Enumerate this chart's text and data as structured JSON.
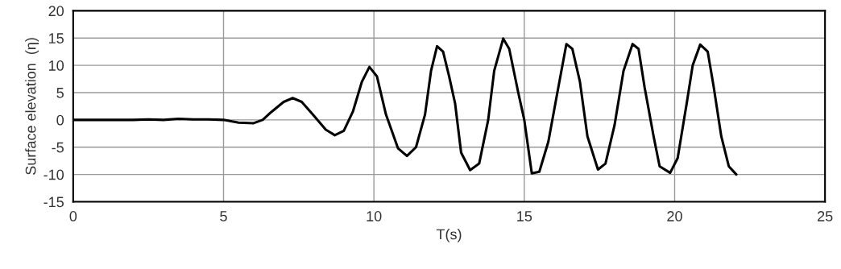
{
  "chart_data": {
    "type": "line",
    "xlabel": "T(s)",
    "ylabel": "Surface elevation  (η)",
    "series": [
      {
        "color": "#000000",
        "x": [
          0,
          0.5,
          1,
          1.5,
          2,
          2.5,
          3,
          3.5,
          4,
          4.5,
          5,
          5.5,
          6,
          6.3,
          6.6,
          7.0,
          7.3,
          7.6,
          8.0,
          8.4,
          8.7,
          9.0,
          9.3,
          9.6,
          9.85,
          10.1,
          10.4,
          10.8,
          11.1,
          11.4,
          11.7,
          11.9,
          12.1,
          12.3,
          12.5,
          12.7,
          12.9,
          13.2,
          13.5,
          13.8,
          14.0,
          14.3,
          14.5,
          14.8,
          15.0,
          15.25,
          15.5,
          15.8,
          16.1,
          16.4,
          16.6,
          16.85,
          17.1,
          17.45,
          17.7,
          18.0,
          18.3,
          18.6,
          18.8,
          19.0,
          19.3,
          19.5,
          19.85,
          20.1,
          20.4,
          20.6,
          20.85,
          21.1,
          21.3,
          21.55,
          21.8,
          22.05
        ],
        "values": [
          0,
          0,
          0,
          0,
          0,
          0.1,
          0,
          0.2,
          0.1,
          0.1,
          0,
          -0.5,
          -0.6,
          0,
          1.5,
          3.3,
          4,
          3.3,
          0.8,
          -1.8,
          -2.8,
          -2,
          1.5,
          7,
          9.7,
          8,
          1,
          -5.2,
          -6.6,
          -5,
          1,
          9,
          13.5,
          12.5,
          8,
          3,
          -6,
          -9.2,
          -8,
          0,
          9,
          14.9,
          13,
          5,
          0,
          -9.8,
          -9.5,
          -4,
          5,
          13.9,
          13,
          7,
          -3,
          -9.1,
          -8,
          -1,
          9,
          13.9,
          13,
          6,
          -3,
          -8.5,
          -9.7,
          -7,
          3,
          10,
          13.8,
          12.5,
          6,
          -3,
          -8.5,
          -10
        ]
      }
    ],
    "xlim": [
      0,
      25
    ],
    "xticks": [
      0,
      5,
      10,
      15,
      20,
      25
    ],
    "ylim": [
      -15,
      20
    ],
    "yticks": [
      -15,
      -10,
      -5,
      0,
      5,
      10,
      15,
      20
    ],
    "grid": true,
    "line_style": "solid",
    "marker": "none"
  }
}
